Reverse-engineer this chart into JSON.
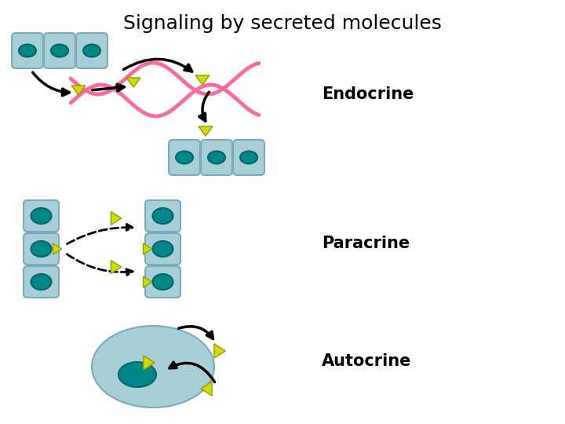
{
  "title": "Signaling by secreted molecules",
  "title_fontsize": 18,
  "background_color": "#ffffff",
  "cell_fill": "#a8ced8",
  "cell_edge": "#7aaabb",
  "nucleus_fill": "#008888",
  "nucleus_edge": "#006666",
  "receptor_color": "#ccdd00",
  "receptor_edge": "#999900",
  "arrow_color": "#000000",
  "bloodvessel_color": "#ff69a0",
  "label_endocrine": "Endocrine",
  "label_paracrine": "Paracrine",
  "label_autocrine": "Autocrine",
  "label_fontsize": 15,
  "label_fontweight": "bold"
}
